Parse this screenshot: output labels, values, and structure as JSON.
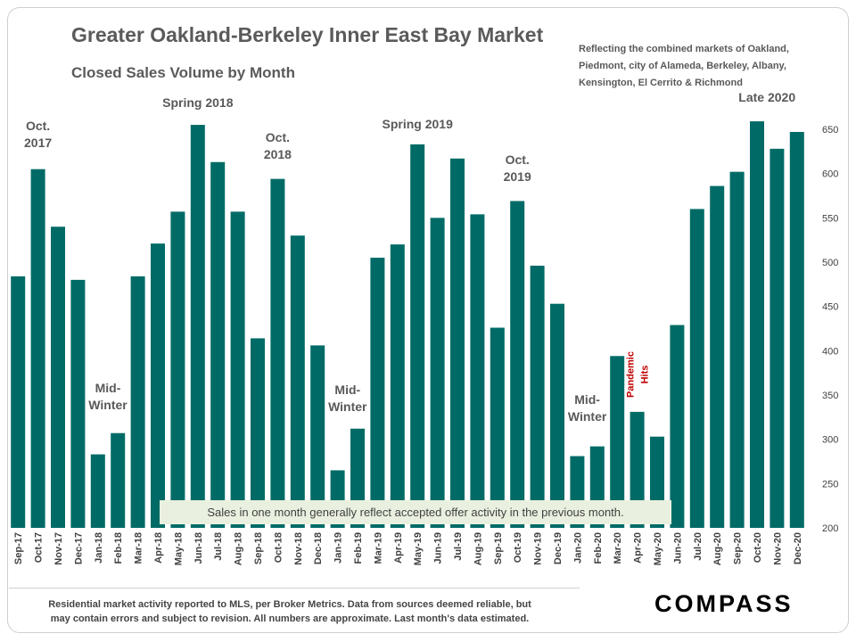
{
  "title": "Greater Oakland-Berkeley Inner East Bay Market",
  "subtitle": "Closed Sales Volume by Month",
  "note": "Reflecting the combined markets of Oakland, Piedmont, city of Alameda, Berkeley, Albany, Kensington, El Cerrito & Richmond",
  "caption": "Sales in one month generally reflect accepted offer activity in the previous month.",
  "footer": {
    "line1": "Residential market activity reported to MLS, per Broker Metrics. Data from sources deemed reliable, but",
    "line2": "may contain errors and subject to revision. All numbers are approximate. Last month's data estimated."
  },
  "logo": "COMPASS",
  "colors": {
    "bar": "#006b66",
    "annotation": "#595959",
    "pandemic": "#c00000"
  },
  "chart_data": {
    "type": "bar",
    "categories": [
      "Sep-17",
      "Oct-17",
      "Nov-17",
      "Dec-17",
      "Jan-18",
      "Feb-18",
      "Mar-18",
      "Apr-18",
      "May-18",
      "Jun-18",
      "Jul-18",
      "Aug-18",
      "Sep-18",
      "Oct-18",
      "Nov-18",
      "Dec-18",
      "Jan-19",
      "Feb-19",
      "Mar-19",
      "Apr-19",
      "May-19",
      "Jun-19",
      "Jul-19",
      "Aug-19",
      "Sep-19",
      "Oct-19",
      "Nov-19",
      "Dec-19",
      "Jan-20",
      "Feb-20",
      "Mar-20",
      "Apr-20",
      "May-20",
      "Jun-20",
      "Jul-20",
      "Aug-20",
      "Sep-20",
      "Oct-20",
      "Nov-20",
      "Dec-20"
    ],
    "values": [
      484,
      605,
      540,
      480,
      283,
      307,
      484,
      521,
      557,
      655,
      613,
      557,
      414,
      594,
      530,
      406,
      265,
      312,
      505,
      520,
      633,
      550,
      617,
      554,
      426,
      569,
      496,
      453,
      281,
      292,
      394,
      331,
      303,
      429,
      560,
      586,
      602,
      659,
      628,
      647
    ],
    "ylim": [
      200,
      650
    ],
    "yticks": [
      200,
      250,
      300,
      350,
      400,
      450,
      500,
      550,
      600,
      650
    ],
    "y_axis_side": "right",
    "grid": false,
    "annotations": [
      {
        "text": [
          "Oct.",
          "2017"
        ],
        "index": 1
      },
      {
        "text": [
          "Spring 2018"
        ],
        "index": 9
      },
      {
        "text": [
          "Mid-",
          "Winter"
        ],
        "index": 4.5
      },
      {
        "text": [
          "Oct.",
          "2018"
        ],
        "index": 13
      },
      {
        "text": [
          "Spring 2019"
        ],
        "index": 20
      },
      {
        "text": [
          "Mid-",
          "Winter"
        ],
        "index": 16.5
      },
      {
        "text": [
          "Oct.",
          "2019"
        ],
        "index": 25
      },
      {
        "text": [
          "Mid-",
          "Winter"
        ],
        "index": 28.5
      },
      {
        "text": [
          "Late 2020"
        ],
        "index": 37.5
      },
      {
        "text": [
          "Pandemic",
          "Hits"
        ],
        "index": 31,
        "style": "pandemic"
      }
    ]
  }
}
